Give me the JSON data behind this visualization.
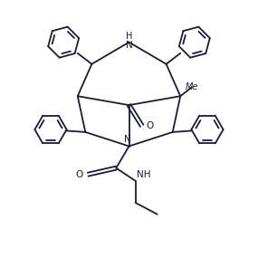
{
  "background_color": "#ffffff",
  "line_color": "#1a1a3a",
  "line_width": 1.3,
  "figsize": [
    2.85,
    3.06
  ],
  "dpi": 100,
  "xlim": [
    0.0,
    10.0
  ],
  "ylim": [
    0.0,
    10.5
  ]
}
